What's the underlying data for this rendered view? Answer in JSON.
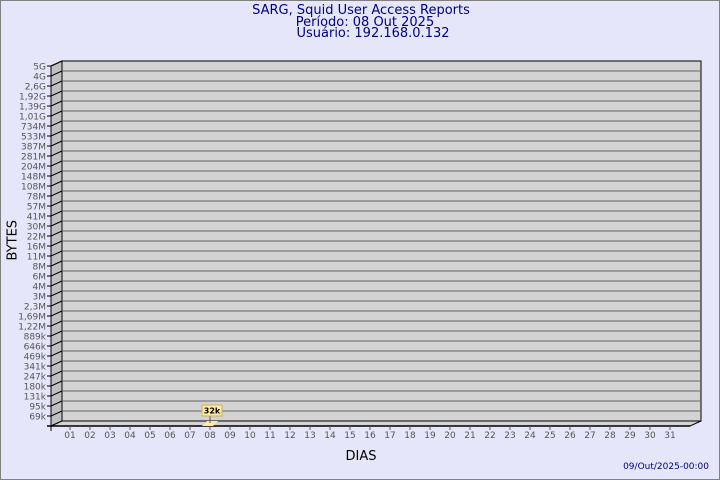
{
  "header": {
    "title": "SARG, Squid User Access Reports",
    "period": "Período: 08 Out 2025",
    "user": "Usuário: 192.168.0.132"
  },
  "footer": {
    "generated": "09/Out/2025-00:00"
  },
  "colors": {
    "background": "#e6e6fa",
    "wall": "#d3d3d3",
    "side_wall": "#c0c0c0",
    "bar": "#ffeb9c",
    "text": "#000080"
  },
  "chart_data": {
    "type": "bar",
    "title": "SARG, Squid User Access Reports",
    "xlabel": "DIAS",
    "ylabel": "BYTES",
    "y_scale": "log",
    "grid": true,
    "y_ticks": [
      "69k",
      "95k",
      "131k",
      "180k",
      "247k",
      "341k",
      "469k",
      "646k",
      "889k",
      "1,22M",
      "1,69M",
      "2,3M",
      "3M",
      "4M",
      "6M",
      "8M",
      "11M",
      "16M",
      "22M",
      "30M",
      "41M",
      "57M",
      "78M",
      "108M",
      "148M",
      "204M",
      "281M",
      "387M",
      "533M",
      "734M",
      "1,01G",
      "1,39G",
      "1,92G",
      "2,6G",
      "4G",
      "5G"
    ],
    "categories": [
      "01",
      "02",
      "03",
      "04",
      "05",
      "06",
      "07",
      "08",
      "09",
      "10",
      "11",
      "12",
      "13",
      "14",
      "15",
      "16",
      "17",
      "18",
      "19",
      "20",
      "21",
      "22",
      "23",
      "24",
      "25",
      "26",
      "27",
      "28",
      "29",
      "30",
      "31"
    ],
    "bars": [
      {
        "category": "08",
        "value": 32000,
        "label": "32k"
      }
    ]
  }
}
